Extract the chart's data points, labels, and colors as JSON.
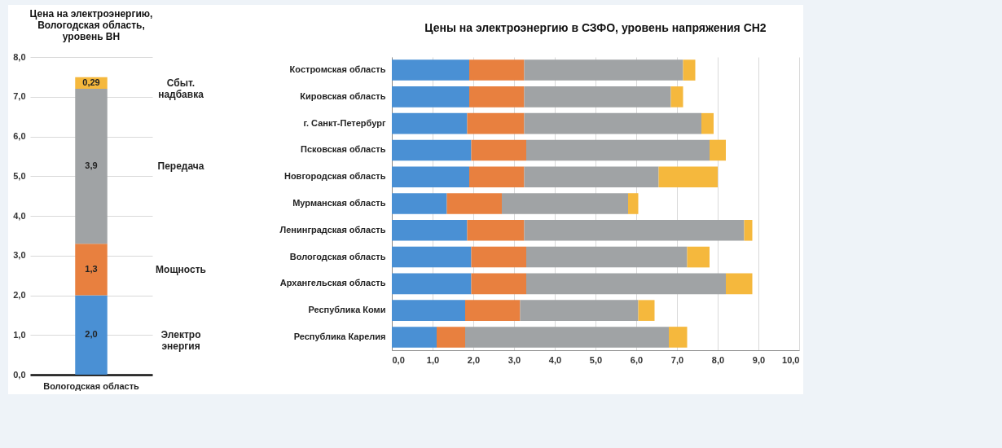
{
  "chart_data": [
    {
      "type": "bar",
      "title": "Цена на электроэнергию,\nВологодская область,\nуровень ВН",
      "categories": [
        "Вологодская область"
      ],
      "stacked": true,
      "legend": false,
      "grid": "y",
      "ylim": [
        0,
        8
      ],
      "yticks": [
        {
          "value": 0,
          "label": "0,0"
        },
        {
          "value": 1,
          "label": "1,0"
        },
        {
          "value": 2,
          "label": "2,0"
        },
        {
          "value": 3,
          "label": "3,0"
        },
        {
          "value": 4,
          "label": "4,0"
        },
        {
          "value": 5,
          "label": "5,0"
        },
        {
          "value": 6,
          "label": "6,0"
        },
        {
          "value": 7,
          "label": "7,0"
        },
        {
          "value": 8,
          "label": "8,0"
        }
      ],
      "series": [
        {
          "name": "Электро энергия",
          "color": "#4a90d4",
          "values": [
            2.0
          ],
          "value_labels": [
            "2,0"
          ]
        },
        {
          "name": "Мощность",
          "color": "#e8803f",
          "values": [
            1.3
          ],
          "value_labels": [
            "1,3"
          ]
        },
        {
          "name": "Передача",
          "color": "#a0a3a5",
          "values": [
            3.9
          ],
          "value_labels": [
            "3,9"
          ]
        },
        {
          "name": "Сбыт. надбавка",
          "color": "#f5b83d",
          "values": [
            0.29
          ],
          "value_labels": [
            "0,29"
          ]
        }
      ]
    },
    {
      "type": "bar",
      "title": "Цены на электроэнергию в СЗФО, уровень напряжения СН2",
      "orientation": "horizontal",
      "stacked": true,
      "legend": false,
      "grid": "x",
      "categories": [
        "Костромская область",
        "Кировская область",
        "г. Санкт-Петербург",
        "Псковская область",
        "Новгородская область",
        "Мурманская область",
        "Ленинградская область",
        "Вологодская область",
        "Архангельская область",
        "Республика Коми",
        "Республика Карелия"
      ],
      "xlim": [
        0,
        10
      ],
      "xticks": [
        {
          "value": 0,
          "label": "0,0"
        },
        {
          "value": 1,
          "label": "1,0"
        },
        {
          "value": 2,
          "label": "2,0"
        },
        {
          "value": 3,
          "label": "3,0"
        },
        {
          "value": 4,
          "label": "4,0"
        },
        {
          "value": 5,
          "label": "5,0"
        },
        {
          "value": 6,
          "label": "6,0"
        },
        {
          "value": 7,
          "label": "7,0"
        },
        {
          "value": 8,
          "label": "8,0"
        },
        {
          "value": 9,
          "label": "9,0"
        },
        {
          "value": 10,
          "label": "10,0"
        }
      ],
      "series": [
        {
          "color": "#4a90d4",
          "values": [
            1.9,
            1.9,
            1.85,
            1.95,
            1.9,
            1.35,
            1.85,
            1.95,
            1.95,
            1.8,
            1.1
          ]
        },
        {
          "color": "#e8803f",
          "values": [
            1.35,
            1.35,
            1.4,
            1.35,
            1.35,
            1.35,
            1.4,
            1.35,
            1.35,
            1.35,
            0.7
          ]
        },
        {
          "color": "#a0a3a5",
          "values": [
            3.9,
            3.6,
            4.35,
            4.5,
            3.3,
            3.1,
            5.4,
            3.95,
            4.9,
            2.9,
            5.0
          ]
        },
        {
          "color": "#f5b83d",
          "values": [
            0.3,
            0.3,
            0.3,
            0.4,
            1.45,
            0.25,
            0.2,
            0.55,
            0.65,
            0.4,
            0.45
          ]
        }
      ]
    }
  ]
}
